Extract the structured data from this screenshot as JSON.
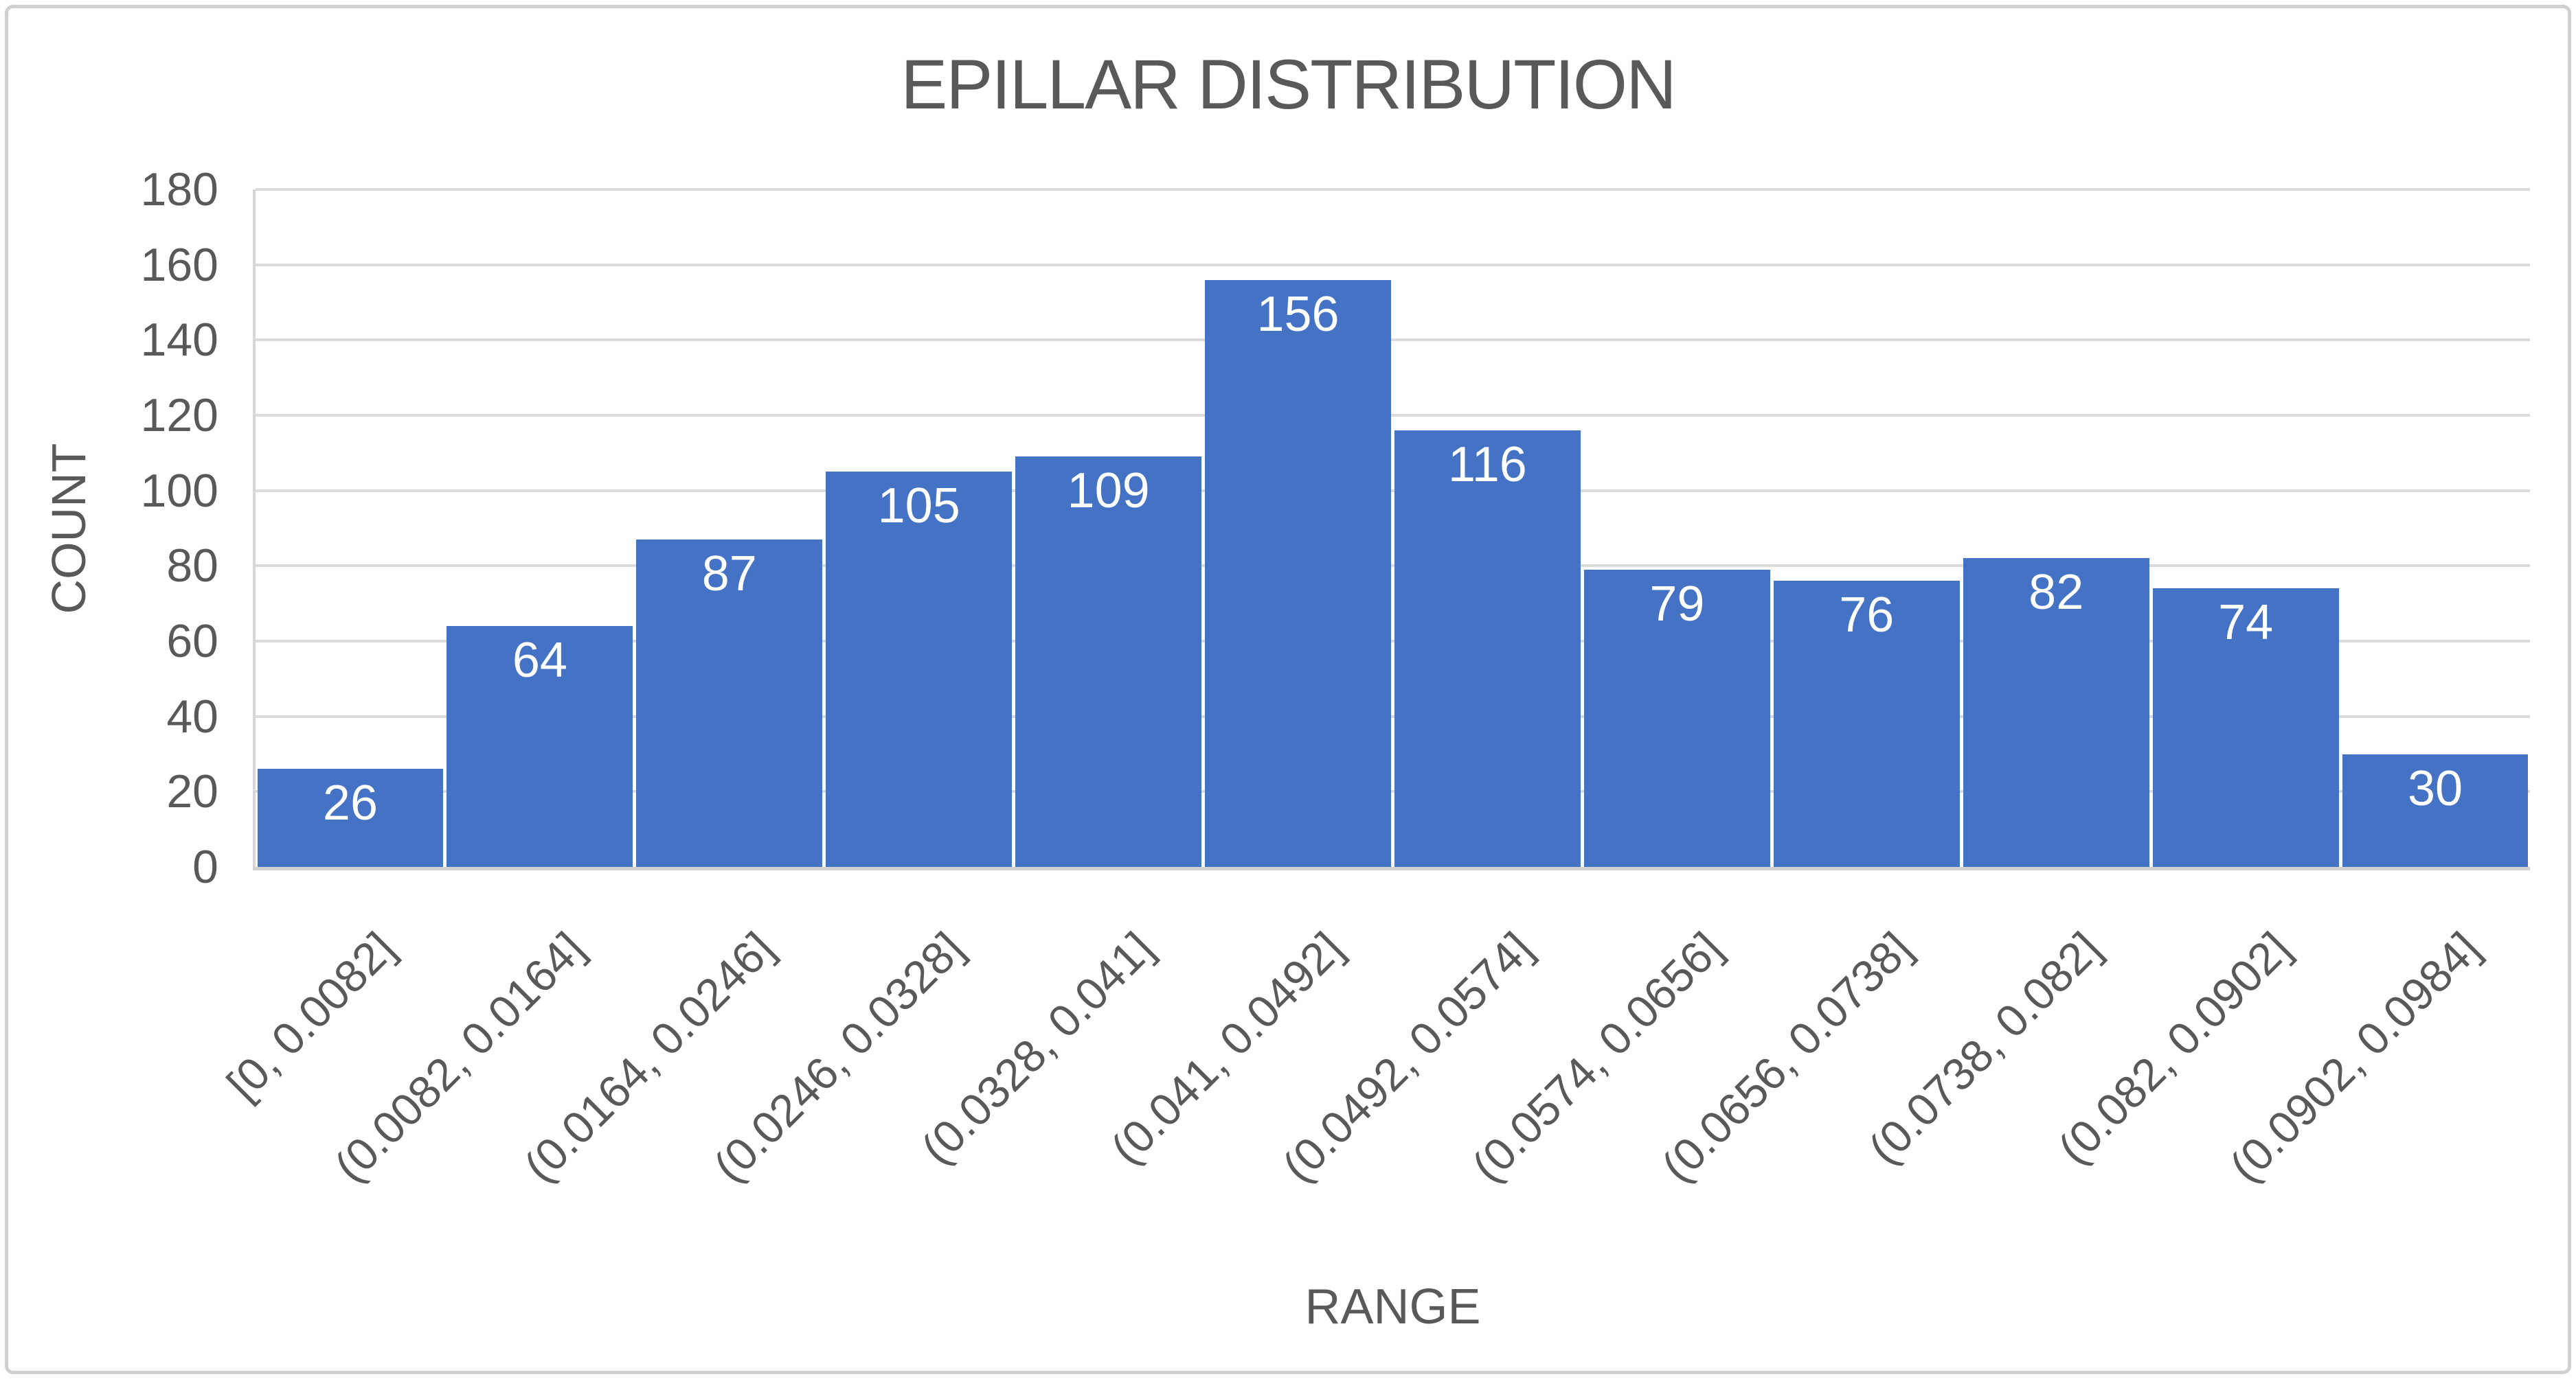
{
  "chart": {
    "title": "EPILLAR DISTRIBUTION",
    "x_axis_title": "RANGE",
    "y_axis_title": "COUNT"
  },
  "chart_data": {
    "type": "bar",
    "subtype": "histogram",
    "title": "EPILLAR DISTRIBUTION",
    "xlabel": "RANGE",
    "ylabel": "COUNT",
    "categories": [
      "[0, 0.0082]",
      "(0.0082, 0.0164]",
      "(0.0164, 0.0246]",
      "(0.0246, 0.0328]",
      "(0.0328, 0.041]",
      "(0.041, 0.0492]",
      "(0.0492, 0.0574]",
      "(0.0574, 0.0656]",
      "(0.0656, 0.0738]",
      "(0.0738, 0.082]",
      "(0.082, 0.0902]",
      "(0.0902, 0.0984]"
    ],
    "values": [
      26,
      64,
      87,
      105,
      109,
      156,
      116,
      79,
      76,
      82,
      74,
      30
    ],
    "ylim": [
      0,
      180
    ],
    "yticks": [
      0,
      20,
      40,
      60,
      80,
      100,
      120,
      140,
      160,
      180
    ],
    "grid": "horizontal",
    "legend": "none",
    "data_label_position": "inside-end",
    "colors": {
      "bar": "#4472C4",
      "data_label": "#FFFFFF",
      "text": "#595959",
      "gridline": "#DBDBDB",
      "axis_line": "#D2D2D2",
      "chart_border": "#D0D0D0",
      "background": "#FFFFFF"
    }
  }
}
